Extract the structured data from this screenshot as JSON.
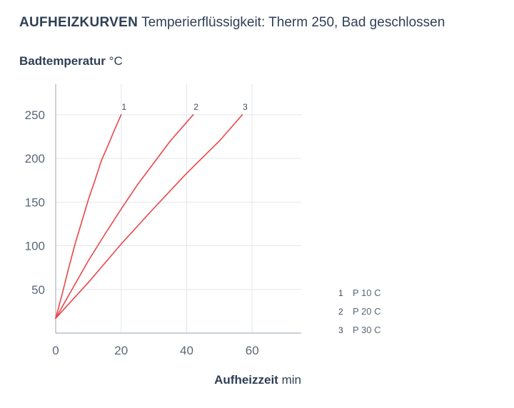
{
  "header": {
    "title_bold": "AUFHEIZKURVEN",
    "title_rest": "Temperierflüssigkeit: Therm 250, Bad geschlossen"
  },
  "axes": {
    "y_label": "Badtemperatur",
    "y_unit": "°C",
    "x_label": "Aufheizzeit",
    "x_unit": "min"
  },
  "colors": {
    "curve": "#e8474a",
    "grid": "#e3e6ea",
    "axis": "#aab3bf"
  },
  "chart_data": {
    "type": "line",
    "xlabel": "Aufheizzeit min",
    "ylabel": "Badtemperatur °C",
    "xlim": [
      0,
      75
    ],
    "ylim": [
      0,
      285
    ],
    "x_ticks": [
      0,
      20,
      40,
      60
    ],
    "y_ticks": [
      50,
      100,
      150,
      200,
      250
    ],
    "grid": true,
    "legend_position": "bottom-right",
    "series": [
      {
        "name": "P 10 C",
        "label": "1",
        "points": [
          [
            0,
            17
          ],
          [
            2,
            45
          ],
          [
            4,
            75
          ],
          [
            6,
            103
          ],
          [
            8,
            128
          ],
          [
            10,
            153
          ],
          [
            12,
            175
          ],
          [
            14,
            198
          ],
          [
            16,
            215
          ],
          [
            18,
            233
          ],
          [
            20,
            250
          ]
        ]
      },
      {
        "name": "P 20 C",
        "label": "2",
        "points": [
          [
            0,
            17
          ],
          [
            5,
            50
          ],
          [
            10,
            83
          ],
          [
            15,
            113
          ],
          [
            20,
            142
          ],
          [
            25,
            170
          ],
          [
            30,
            195
          ],
          [
            35,
            220
          ],
          [
            42,
            250
          ]
        ]
      },
      {
        "name": "P 30 C",
        "label": "3",
        "points": [
          [
            0,
            17
          ],
          [
            10,
            58
          ],
          [
            20,
            102
          ],
          [
            30,
            143
          ],
          [
            40,
            183
          ],
          [
            50,
            220
          ],
          [
            57,
            250
          ]
        ]
      }
    ]
  }
}
